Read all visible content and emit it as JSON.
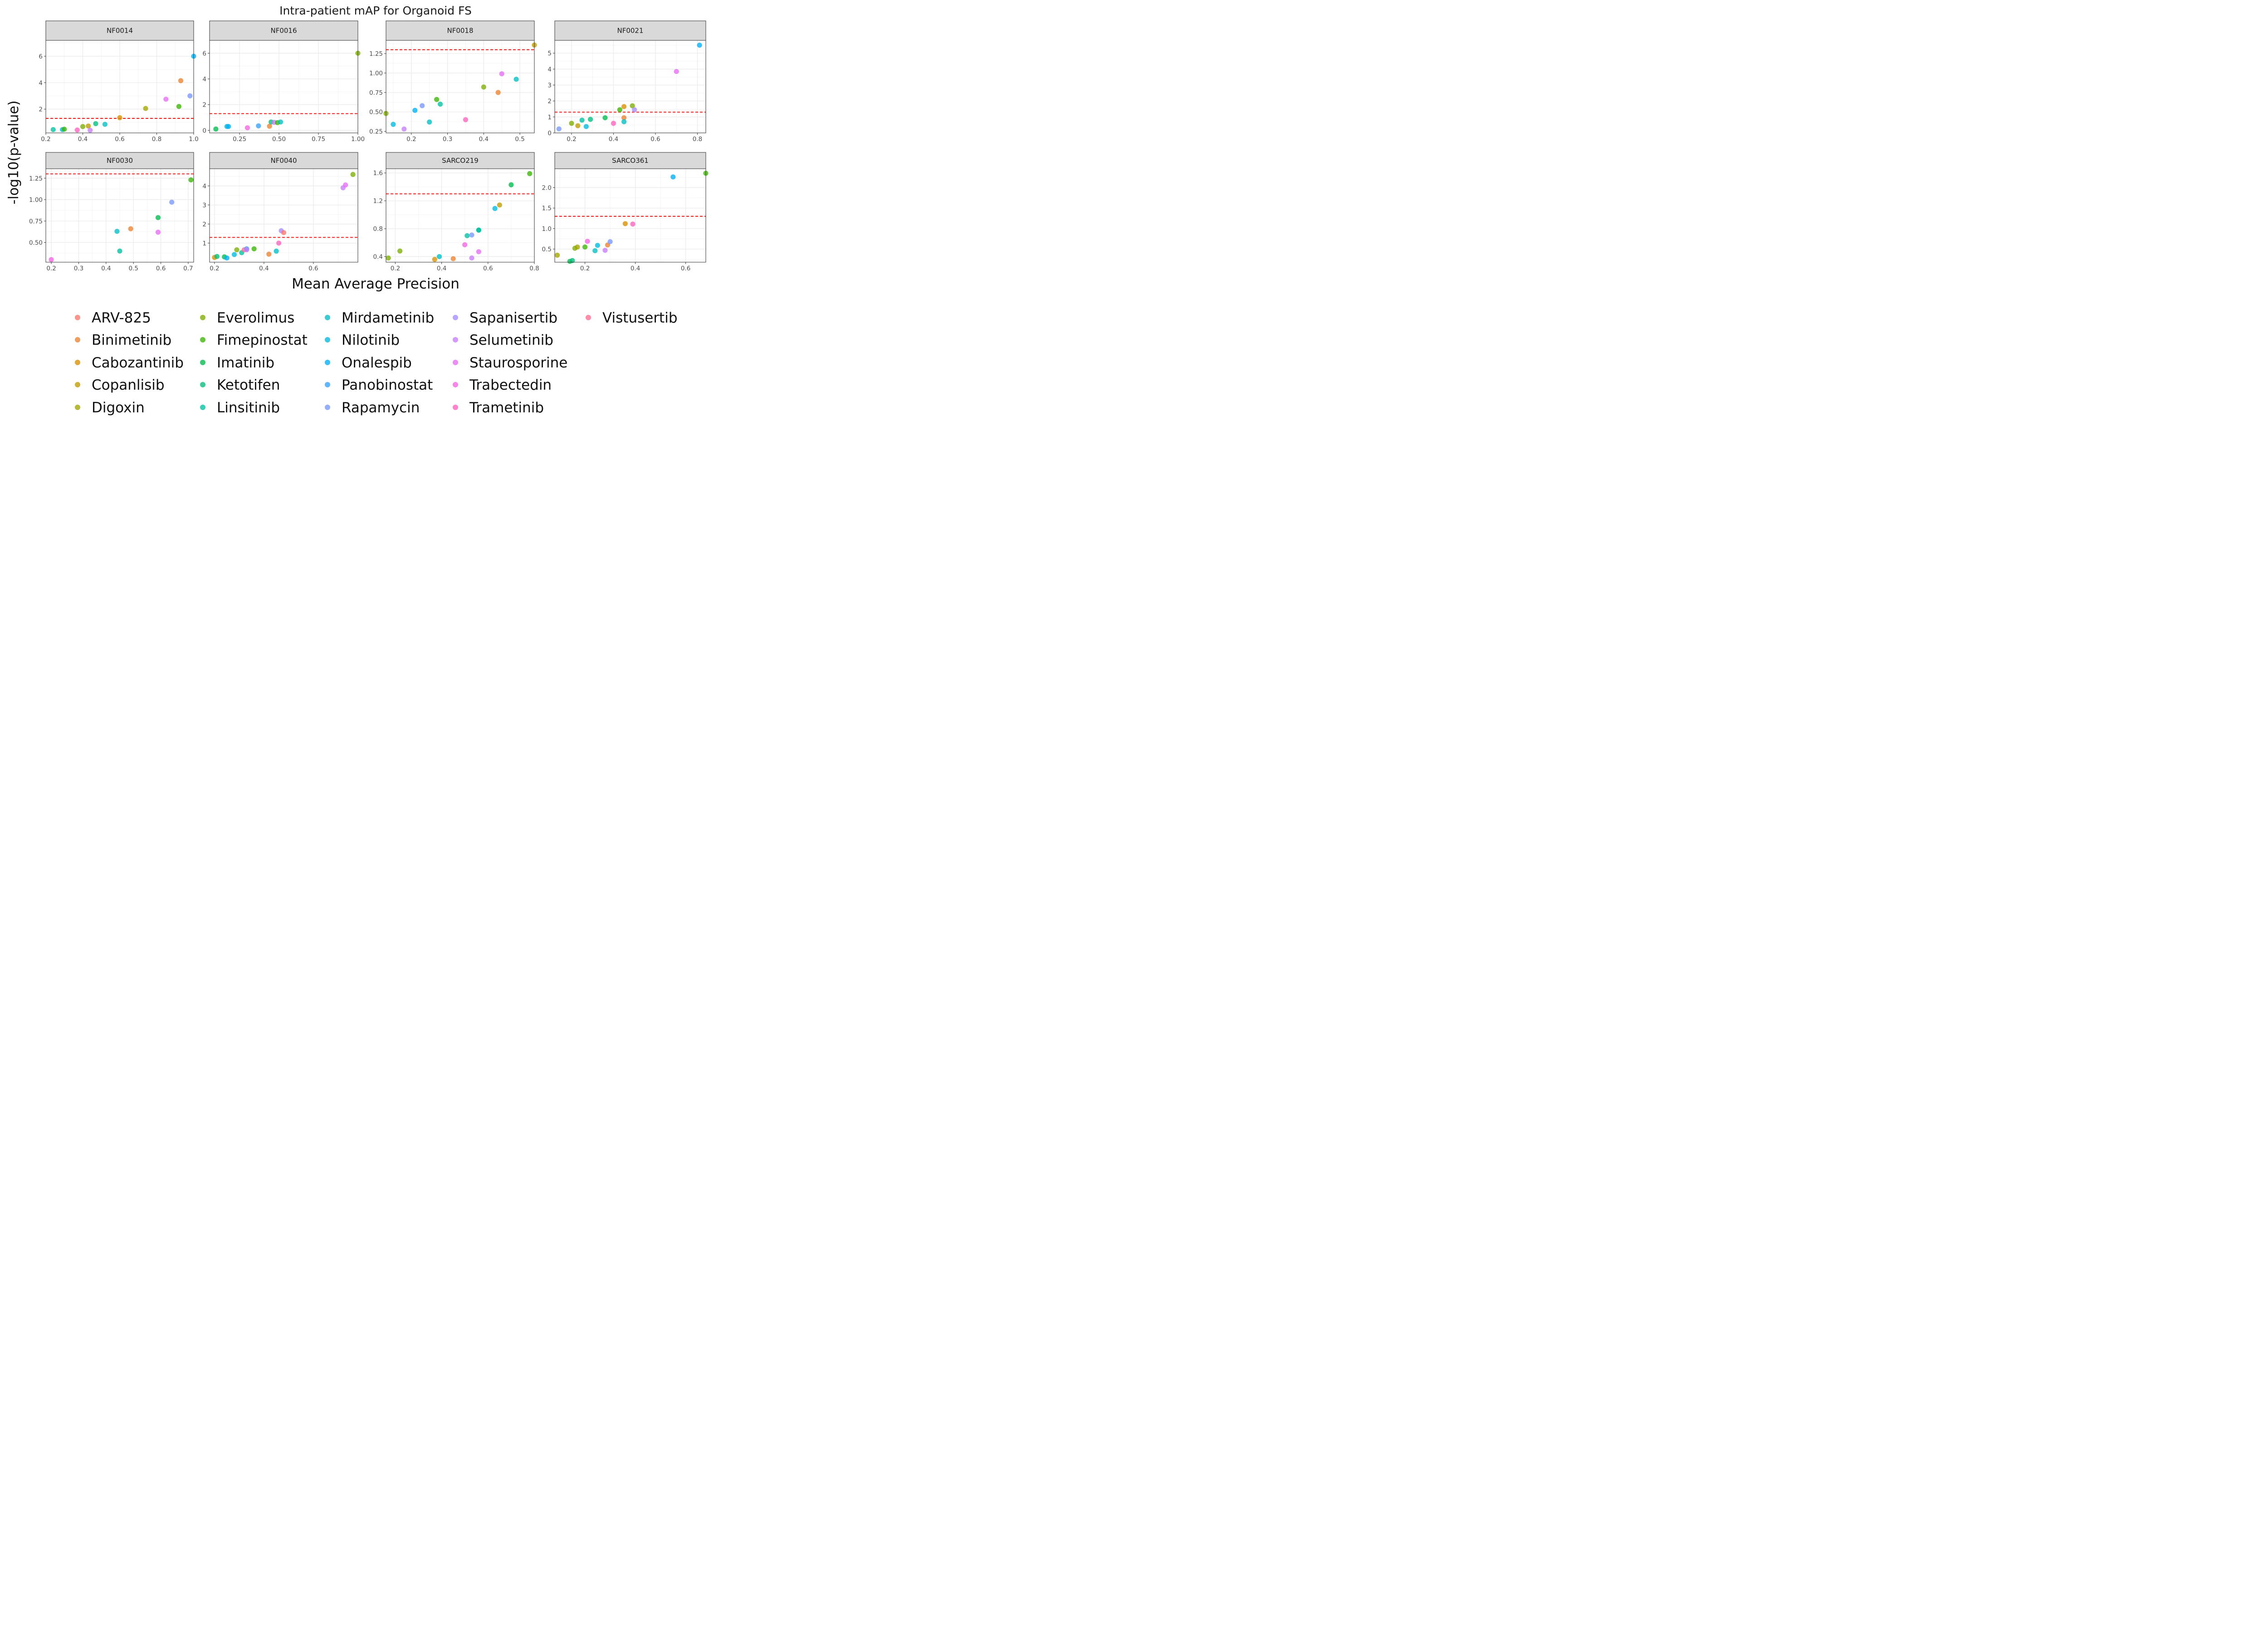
{
  "chart_data": {
    "type": "scatter",
    "title": "Intra-patient mAP for Organoid FS",
    "xlabel": "Mean Average Precision",
    "ylabel": "-log10(p-value)",
    "threshold": 1.3,
    "threshold_color": "#ff0000",
    "legend_position": "bottom",
    "grid": true,
    "drugs": [
      {
        "name": "ARV-825",
        "color": "#F8766D"
      },
      {
        "name": "Binimetinib",
        "color": "#EA8331"
      },
      {
        "name": "Cabozantinib",
        "color": "#D89000"
      },
      {
        "name": "Copanlisib",
        "color": "#C09B00"
      },
      {
        "name": "Digoxin",
        "color": "#A3A500"
      },
      {
        "name": "Everolimus",
        "color": "#7CAE00"
      },
      {
        "name": "Fimepinostat",
        "color": "#39B600"
      },
      {
        "name": "Imatinib",
        "color": "#00BB4E"
      },
      {
        "name": "Ketotifen",
        "color": "#00BF7D"
      },
      {
        "name": "Linsitinib",
        "color": "#00C1A3"
      },
      {
        "name": "Mirdametinib",
        "color": "#00BFC4"
      },
      {
        "name": "Nilotinib",
        "color": "#00BAE0"
      },
      {
        "name": "Onalespib",
        "color": "#00B0F6"
      },
      {
        "name": "Panobinostat",
        "color": "#35A2FF"
      },
      {
        "name": "Rapamycin",
        "color": "#7997FF"
      },
      {
        "name": "Sapanisertib",
        "color": "#A58AFF"
      },
      {
        "name": "Selumetinib",
        "color": "#C77CFF"
      },
      {
        "name": "Staurosporine",
        "color": "#E76BF3"
      },
      {
        "name": "Trabectedin",
        "color": "#F564E3"
      },
      {
        "name": "Trametinib",
        "color": "#FF62BC"
      },
      {
        "name": "Vistusertib",
        "color": "#FF6C90"
      }
    ],
    "panels": [
      {
        "label": "NF0014",
        "xlim": [
          0.2,
          1.0
        ],
        "ylim": [
          0.2,
          7.2
        ],
        "xticks": [
          0.2,
          0.4,
          0.6,
          0.8,
          1.0
        ],
        "xtick_labels": [
          "0.2",
          "0.4",
          "0.6",
          "0.8",
          "1.0"
        ],
        "yticks": [
          2,
          4,
          6
        ],
        "ytick_labels": [
          "2",
          "4",
          "6"
        ],
        "points": [
          {
            "drug": "Linsitinib",
            "x": 0.24,
            "y": 0.45
          },
          {
            "drug": "Nilotinib",
            "x": 0.29,
            "y": 0.45
          },
          {
            "drug": "Fimepinostat",
            "x": 0.3,
            "y": 0.48
          },
          {
            "drug": "Trametinib",
            "x": 0.37,
            "y": 0.42
          },
          {
            "drug": "Everolimus",
            "x": 0.4,
            "y": 0.68
          },
          {
            "drug": "Copanlisib",
            "x": 0.43,
            "y": 0.72
          },
          {
            "drug": "Selumetinib",
            "x": 0.44,
            "y": 0.4
          },
          {
            "drug": "Ketotifen",
            "x": 0.47,
            "y": 0.9
          },
          {
            "drug": "Mirdametinib",
            "x": 0.52,
            "y": 0.85
          },
          {
            "drug": "Cabozantinib",
            "x": 0.6,
            "y": 1.35
          },
          {
            "drug": "Digoxin",
            "x": 0.74,
            "y": 2.05
          },
          {
            "drug": "Staurosporine",
            "x": 0.85,
            "y": 2.75
          },
          {
            "drug": "Fimepinostat",
            "x": 0.92,
            "y": 2.2
          },
          {
            "drug": "Binimetinib",
            "x": 0.93,
            "y": 4.15
          },
          {
            "drug": "Rapamycin",
            "x": 0.98,
            "y": 3.0
          },
          {
            "drug": "Onalespib",
            "x": 1.0,
            "y": 6.0
          }
        ]
      },
      {
        "label": "NF0016",
        "xlim": [
          0.06,
          1.0
        ],
        "ylim": [
          -0.2,
          7.0
        ],
        "xticks": [
          0.25,
          0.5,
          0.75,
          1.0
        ],
        "xtick_labels": [
          "0.25",
          "0.50",
          "0.75",
          "1.00"
        ],
        "yticks": [
          0,
          2,
          4,
          6
        ],
        "ytick_labels": [
          "0",
          "2",
          "4",
          "6"
        ],
        "points": [
          {
            "drug": "Imatinib",
            "x": 0.1,
            "y": 0.1
          },
          {
            "drug": "Nilotinib",
            "x": 0.17,
            "y": 0.3
          },
          {
            "drug": "Onalespib",
            "x": 0.18,
            "y": 0.3
          },
          {
            "drug": "Trabectedin",
            "x": 0.3,
            "y": 0.2
          },
          {
            "drug": "Panobinostat",
            "x": 0.37,
            "y": 0.35
          },
          {
            "drug": "Binimetinib",
            "x": 0.44,
            "y": 0.32
          },
          {
            "drug": "Ketotifen",
            "x": 0.45,
            "y": 0.65
          },
          {
            "drug": "Selumetinib",
            "x": 0.47,
            "y": 0.62
          },
          {
            "drug": "Fimepinostat",
            "x": 0.49,
            "y": 0.6
          },
          {
            "drug": "Mirdametinib",
            "x": 0.51,
            "y": 0.65
          },
          {
            "drug": "Everolimus",
            "x": 1.0,
            "y": 6.0
          }
        ]
      },
      {
        "label": "NF0018",
        "xlim": [
          0.13,
          0.54
        ],
        "ylim": [
          0.23,
          1.42
        ],
        "xticks": [
          0.2,
          0.3,
          0.4,
          0.5
        ],
        "xtick_labels": [
          "0.2",
          "0.3",
          "0.4",
          "0.5"
        ],
        "yticks": [
          0.25,
          0.5,
          0.75,
          1.0,
          1.25
        ],
        "ytick_labels": [
          "0.25",
          "0.50",
          "0.75",
          "1.00",
          "1.25"
        ],
        "points": [
          {
            "drug": "Everolimus",
            "x": 0.13,
            "y": 0.48
          },
          {
            "drug": "Nilotinib",
            "x": 0.15,
            "y": 0.34
          },
          {
            "drug": "Selumetinib",
            "x": 0.18,
            "y": 0.28
          },
          {
            "drug": "Onalespib",
            "x": 0.21,
            "y": 0.52
          },
          {
            "drug": "Rapamycin",
            "x": 0.23,
            "y": 0.58
          },
          {
            "drug": "Mirdametinib",
            "x": 0.25,
            "y": 0.37
          },
          {
            "drug": "Fimepinostat",
            "x": 0.27,
            "y": 0.66
          },
          {
            "drug": "Linsitinib",
            "x": 0.28,
            "y": 0.6
          },
          {
            "drug": "Trametinib",
            "x": 0.35,
            "y": 0.4
          },
          {
            "drug": "Everolimus",
            "x": 0.4,
            "y": 0.82
          },
          {
            "drug": "Binimetinib",
            "x": 0.44,
            "y": 0.75
          },
          {
            "drug": "Staurosporine",
            "x": 0.45,
            "y": 0.99
          },
          {
            "drug": "Mirdametinib",
            "x": 0.49,
            "y": 0.92
          },
          {
            "drug": "Copanlisib",
            "x": 0.54,
            "y": 1.36
          }
        ]
      },
      {
        "label": "NF0021",
        "xlim": [
          0.12,
          0.84
        ],
        "ylim": [
          0.0,
          5.8
        ],
        "xticks": [
          0.2,
          0.4,
          0.6,
          0.8
        ],
        "xtick_labels": [
          "0.2",
          "0.4",
          "0.6",
          "0.8"
        ],
        "yticks": [
          0,
          1,
          2,
          3,
          4,
          5
        ],
        "ytick_labels": [
          "0",
          "1",
          "2",
          "3",
          "4",
          "5"
        ],
        "points": [
          {
            "drug": "Rapamycin",
            "x": 0.14,
            "y": 0.25
          },
          {
            "drug": "Everolimus",
            "x": 0.2,
            "y": 0.6
          },
          {
            "drug": "Copanlisib",
            "x": 0.23,
            "y": 0.45
          },
          {
            "drug": "Linsitinib",
            "x": 0.25,
            "y": 0.8
          },
          {
            "drug": "Nilotinib",
            "x": 0.27,
            "y": 0.4
          },
          {
            "drug": "Ketotifen",
            "x": 0.29,
            "y": 0.85
          },
          {
            "drug": "Imatinib",
            "x": 0.36,
            "y": 0.95
          },
          {
            "drug": "Trametinib",
            "x": 0.4,
            "y": 0.6
          },
          {
            "drug": "Fimepinostat",
            "x": 0.43,
            "y": 1.45
          },
          {
            "drug": "Cabozantinib",
            "x": 0.45,
            "y": 1.65
          },
          {
            "drug": "Binimetinib",
            "x": 0.45,
            "y": 0.95
          },
          {
            "drug": "Mirdametinib",
            "x": 0.45,
            "y": 0.7
          },
          {
            "drug": "Everolimus",
            "x": 0.49,
            "y": 1.7
          },
          {
            "drug": "Sapanisertib",
            "x": 0.5,
            "y": 1.45
          },
          {
            "drug": "Staurosporine",
            "x": 0.7,
            "y": 3.85
          },
          {
            "drug": "Onalespib",
            "x": 0.81,
            "y": 5.5
          }
        ]
      },
      {
        "label": "NF0030",
        "xlim": [
          0.18,
          0.72
        ],
        "ylim": [
          0.27,
          1.36
        ],
        "xticks": [
          0.2,
          0.3,
          0.4,
          0.5,
          0.6,
          0.7
        ],
        "xtick_labels": [
          "0.2",
          "0.3",
          "0.4",
          "0.5",
          "0.6",
          "0.7"
        ],
        "yticks": [
          0.5,
          0.75,
          1.0,
          1.25
        ],
        "ytick_labels": [
          "0.50",
          "0.75",
          "1.00",
          "1.25"
        ],
        "points": [
          {
            "drug": "Trabectedin",
            "x": 0.2,
            "y": 0.3
          },
          {
            "drug": "Mirdametinib",
            "x": 0.44,
            "y": 0.63
          },
          {
            "drug": "Linsitinib",
            "x": 0.45,
            "y": 0.4
          },
          {
            "drug": "Binimetinib",
            "x": 0.49,
            "y": 0.66
          },
          {
            "drug": "Imatinib",
            "x": 0.59,
            "y": 0.79
          },
          {
            "drug": "Staurosporine",
            "x": 0.59,
            "y": 0.62
          },
          {
            "drug": "Rapamycin",
            "x": 0.64,
            "y": 0.97
          },
          {
            "drug": "Fimepinostat",
            "x": 0.71,
            "y": 1.23
          }
        ]
      },
      {
        "label": "NF0040",
        "xlim": [
          0.18,
          0.78
        ],
        "ylim": [
          0.0,
          4.9
        ],
        "xticks": [
          0.2,
          0.4,
          0.6
        ],
        "xtick_labels": [
          "0.2",
          "0.4",
          "0.6"
        ],
        "yticks": [
          1,
          2,
          3,
          4
        ],
        "ytick_labels": [
          "1",
          "2",
          "3",
          "4"
        ],
        "points": [
          {
            "drug": "Cabozantinib",
            "x": 0.2,
            "y": 0.25
          },
          {
            "drug": "Ketotifen",
            "x": 0.21,
            "y": 0.3
          },
          {
            "drug": "Imatinib",
            "x": 0.24,
            "y": 0.28
          },
          {
            "drug": "Onalespib",
            "x": 0.25,
            "y": 0.22
          },
          {
            "drug": "Nilotinib",
            "x": 0.28,
            "y": 0.4
          },
          {
            "drug": "Everolimus",
            "x": 0.29,
            "y": 0.65
          },
          {
            "drug": "Linsitinib",
            "x": 0.31,
            "y": 0.5
          },
          {
            "drug": "Vistusertib",
            "x": 0.32,
            "y": 0.65
          },
          {
            "drug": "Panobinostat",
            "x": 0.33,
            "y": 0.7
          },
          {
            "drug": "Selumetinib",
            "x": 0.33,
            "y": 0.65
          },
          {
            "drug": "Fimepinostat",
            "x": 0.36,
            "y": 0.7
          },
          {
            "drug": "Binimetinib",
            "x": 0.42,
            "y": 0.42
          },
          {
            "drug": "Mirdametinib",
            "x": 0.45,
            "y": 0.58
          },
          {
            "drug": "Trametinib",
            "x": 0.46,
            "y": 1.0
          },
          {
            "drug": "Sapanisertib",
            "x": 0.47,
            "y": 1.65
          },
          {
            "drug": "ARV-825",
            "x": 0.48,
            "y": 1.55
          },
          {
            "drug": "Selumetinib",
            "x": 0.72,
            "y": 3.9
          },
          {
            "drug": "Staurosporine",
            "x": 0.73,
            "y": 4.05
          },
          {
            "drug": "Everolimus",
            "x": 0.76,
            "y": 4.6
          }
        ]
      },
      {
        "label": "SARCO219",
        "xlim": [
          0.16,
          0.8
        ],
        "ylim": [
          0.32,
          1.66
        ],
        "xticks": [
          0.2,
          0.4,
          0.6,
          0.8
        ],
        "xtick_labels": [
          "0.2",
          "0.4",
          "0.6",
          "0.8"
        ],
        "yticks": [
          0.4,
          0.8,
          1.2,
          1.6
        ],
        "ytick_labels": [
          "0.4",
          "0.8",
          "1.2",
          "1.6"
        ],
        "points": [
          {
            "drug": "Everolimus",
            "x": 0.17,
            "y": 0.38
          },
          {
            "drug": "Everolimus",
            "x": 0.22,
            "y": 0.48
          },
          {
            "drug": "Cabozantinib",
            "x": 0.37,
            "y": 0.36
          },
          {
            "drug": "Mirdametinib",
            "x": 0.39,
            "y": 0.4
          },
          {
            "drug": "Binimetinib",
            "x": 0.45,
            "y": 0.37
          },
          {
            "drug": "Trabectedin",
            "x": 0.5,
            "y": 0.57
          },
          {
            "drug": "Linsitinib",
            "x": 0.51,
            "y": 0.7
          },
          {
            "drug": "Rapamycin",
            "x": 0.53,
            "y": 0.71
          },
          {
            "drug": "Selumetinib",
            "x": 0.53,
            "y": 0.38
          },
          {
            "drug": "Ketotifen",
            "x": 0.56,
            "y": 0.78
          },
          {
            "drug": "Linsitinib",
            "x": 0.56,
            "y": 0.78
          },
          {
            "drug": "Staurosporine",
            "x": 0.56,
            "y": 0.47
          },
          {
            "drug": "Nilotinib",
            "x": 0.63,
            "y": 1.09
          },
          {
            "drug": "Copanlisib",
            "x": 0.65,
            "y": 1.14
          },
          {
            "drug": "Imatinib",
            "x": 0.7,
            "y": 1.43
          },
          {
            "drug": "Fimepinostat",
            "x": 0.78,
            "y": 1.59
          }
        ]
      },
      {
        "label": "SARCO361",
        "xlim": [
          0.08,
          0.68
        ],
        "ylim": [
          0.18,
          2.46
        ],
        "xticks": [
          0.2,
          0.4,
          0.6
        ],
        "xtick_labels": [
          "0.2",
          "0.4",
          "0.6"
        ],
        "yticks": [
          0.5,
          1.0,
          1.5,
          2.0
        ],
        "ytick_labels": [
          "0.5",
          "1.0",
          "1.5",
          "2.0"
        ],
        "points": [
          {
            "drug": "Digoxin",
            "x": 0.09,
            "y": 0.35
          },
          {
            "drug": "Imatinib",
            "x": 0.14,
            "y": 0.2
          },
          {
            "drug": "Ketotifen",
            "x": 0.15,
            "y": 0.22
          },
          {
            "drug": "Everolimus",
            "x": 0.16,
            "y": 0.52
          },
          {
            "drug": "Digoxin",
            "x": 0.17,
            "y": 0.55
          },
          {
            "drug": "Fimepinostat",
            "x": 0.2,
            "y": 0.55
          },
          {
            "drug": "Trabectedin",
            "x": 0.21,
            "y": 0.69
          },
          {
            "drug": "Mirdametinib",
            "x": 0.24,
            "y": 0.46
          },
          {
            "drug": "Nilotinib",
            "x": 0.25,
            "y": 0.59
          },
          {
            "drug": "Selumetinib",
            "x": 0.28,
            "y": 0.47
          },
          {
            "drug": "Binimetinib",
            "x": 0.29,
            "y": 0.6
          },
          {
            "drug": "Rapamycin",
            "x": 0.3,
            "y": 0.68
          },
          {
            "drug": "Cabozantinib",
            "x": 0.36,
            "y": 1.12
          },
          {
            "drug": "Trametinib",
            "x": 0.39,
            "y": 1.11
          },
          {
            "drug": "Onalespib",
            "x": 0.55,
            "y": 2.26
          },
          {
            "drug": "Fimepinostat",
            "x": 0.68,
            "y": 2.35
          }
        ]
      }
    ]
  }
}
